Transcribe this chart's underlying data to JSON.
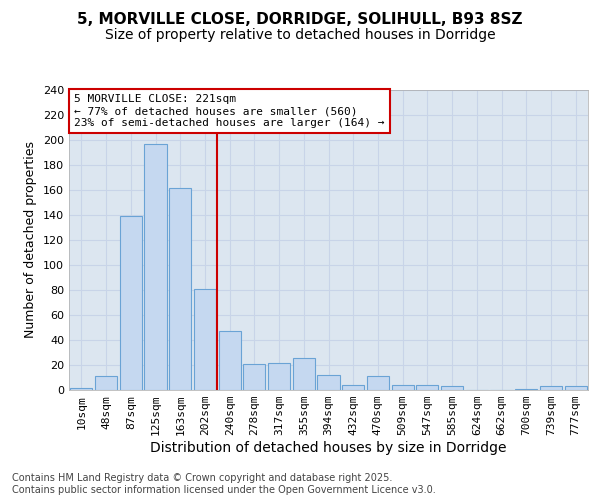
{
  "title_line1": "5, MORVILLE CLOSE, DORRIDGE, SOLIHULL, B93 8SZ",
  "title_line2": "Size of property relative to detached houses in Dorridge",
  "xlabel": "Distribution of detached houses by size in Dorridge",
  "ylabel": "Number of detached properties",
  "bar_labels": [
    "10sqm",
    "48sqm",
    "87sqm",
    "125sqm",
    "163sqm",
    "202sqm",
    "240sqm",
    "278sqm",
    "317sqm",
    "355sqm",
    "394sqm",
    "432sqm",
    "470sqm",
    "509sqm",
    "547sqm",
    "585sqm",
    "624sqm",
    "662sqm",
    "700sqm",
    "739sqm",
    "777sqm"
  ],
  "bar_values": [
    2,
    11,
    139,
    197,
    162,
    81,
    47,
    21,
    22,
    26,
    12,
    4,
    11,
    4,
    4,
    3,
    0,
    0,
    1,
    3,
    3
  ],
  "bar_color": "#c5d8f0",
  "bar_edgecolor": "#6aa3d5",
  "vline_color": "#cc0000",
  "vline_pos": 5.5,
  "annotation_text": "5 MORVILLE CLOSE: 221sqm\n← 77% of detached houses are smaller (560)\n23% of semi-detached houses are larger (164) →",
  "annotation_box_facecolor": "#ffffff",
  "annotation_box_edgecolor": "#cc0000",
  "ylim": [
    0,
    240
  ],
  "yticks": [
    0,
    20,
    40,
    60,
    80,
    100,
    120,
    140,
    160,
    180,
    200,
    220,
    240
  ],
  "grid_color": "#c8d4e8",
  "plot_bg_color": "#dce6f0",
  "fig_bg_color": "#ffffff",
  "footnote": "Contains HM Land Registry data © Crown copyright and database right 2025.\nContains public sector information licensed under the Open Government Licence v3.0.",
  "title_fontsize": 11,
  "subtitle_fontsize": 10,
  "xlabel_fontsize": 10,
  "ylabel_fontsize": 9,
  "tick_fontsize": 8,
  "annotation_fontsize": 8,
  "footnote_fontsize": 7
}
